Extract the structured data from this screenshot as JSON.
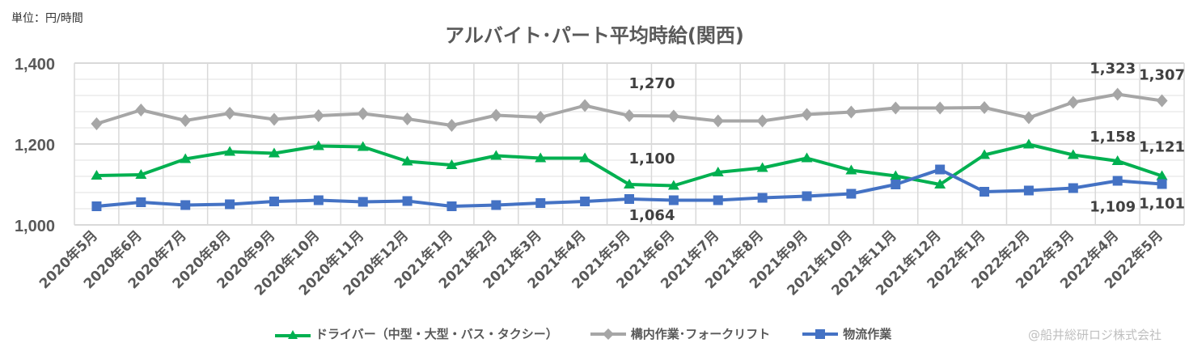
{
  "unit_label": "単位：円/時間",
  "credit": "@船井総研ロジ株式会社",
  "chart_data": {
    "type": "line",
    "title": "アルバイト･パート平均時給(関西)",
    "ylim": [
      1000,
      1400
    ],
    "yticks": [
      "1,000",
      "1,200",
      "1,400"
    ],
    "ytick_values": [
      1000,
      1200,
      1400
    ],
    "grid": true,
    "legend_position": "bottom",
    "categories": [
      "2020年5月",
      "2020年6月",
      "2020年7月",
      "2020年8月",
      "2020年9月",
      "2020年10月",
      "2020年11月",
      "2020年12月",
      "2021年1月",
      "2021年2月",
      "2021年3月",
      "2021年4月",
      "2021年5月",
      "2021年6月",
      "2021年7月",
      "2021年8月",
      "2021年9月",
      "2021年10月",
      "2021年11月",
      "2021年12月",
      "2022年1月",
      "2022年2月",
      "2022年3月",
      "2022年4月",
      "2022年5月"
    ],
    "series": [
      {
        "name": "ドライバー（中型・大型・バス・タクシー）",
        "color": "#00b050",
        "marker": "triangle",
        "values": [
          1122,
          1124,
          1163,
          1181,
          1177,
          1195,
          1193,
          1157,
          1148,
          1171,
          1165,
          1165,
          1100,
          1097,
          1130,
          1141,
          1165,
          1135,
          1121,
          1100,
          1173,
          1199,
          1173,
          1158,
          1121
        ]
      },
      {
        "name": "構内作業･フォークリフト",
        "color": "#a6a6a6",
        "marker": "diamond",
        "values": [
          1250,
          1284,
          1258,
          1276,
          1261,
          1270,
          1275,
          1262,
          1246,
          1271,
          1266,
          1295,
          1270,
          1269,
          1257,
          1257,
          1273,
          1279,
          1289,
          1289,
          1290,
          1265,
          1303,
          1323,
          1307
        ]
      },
      {
        "name": "物流作業",
        "color": "#4472c4",
        "marker": "square",
        "values": [
          1046,
          1056,
          1049,
          1051,
          1058,
          1061,
          1057,
          1059,
          1046,
          1049,
          1054,
          1058,
          1064,
          1061,
          1061,
          1067,
          1071,
          1077,
          1100,
          1137,
          1082,
          1085,
          1091,
          1109,
          1101
        ]
      }
    ],
    "data_labels": [
      {
        "series": 1,
        "index": 12,
        "text": "1,270"
      },
      {
        "series": 1,
        "index": 23,
        "text": "1,323"
      },
      {
        "series": 1,
        "index": 24,
        "text": "1,307"
      },
      {
        "series": 0,
        "index": 12,
        "text": "1,100"
      },
      {
        "series": 0,
        "index": 23,
        "text": "1,158"
      },
      {
        "series": 0,
        "index": 24,
        "text": "1,121"
      },
      {
        "series": 2,
        "index": 12,
        "text": "1,064"
      },
      {
        "series": 2,
        "index": 23,
        "text": "1,109"
      },
      {
        "series": 2,
        "index": 24,
        "text": "1,101"
      }
    ]
  }
}
